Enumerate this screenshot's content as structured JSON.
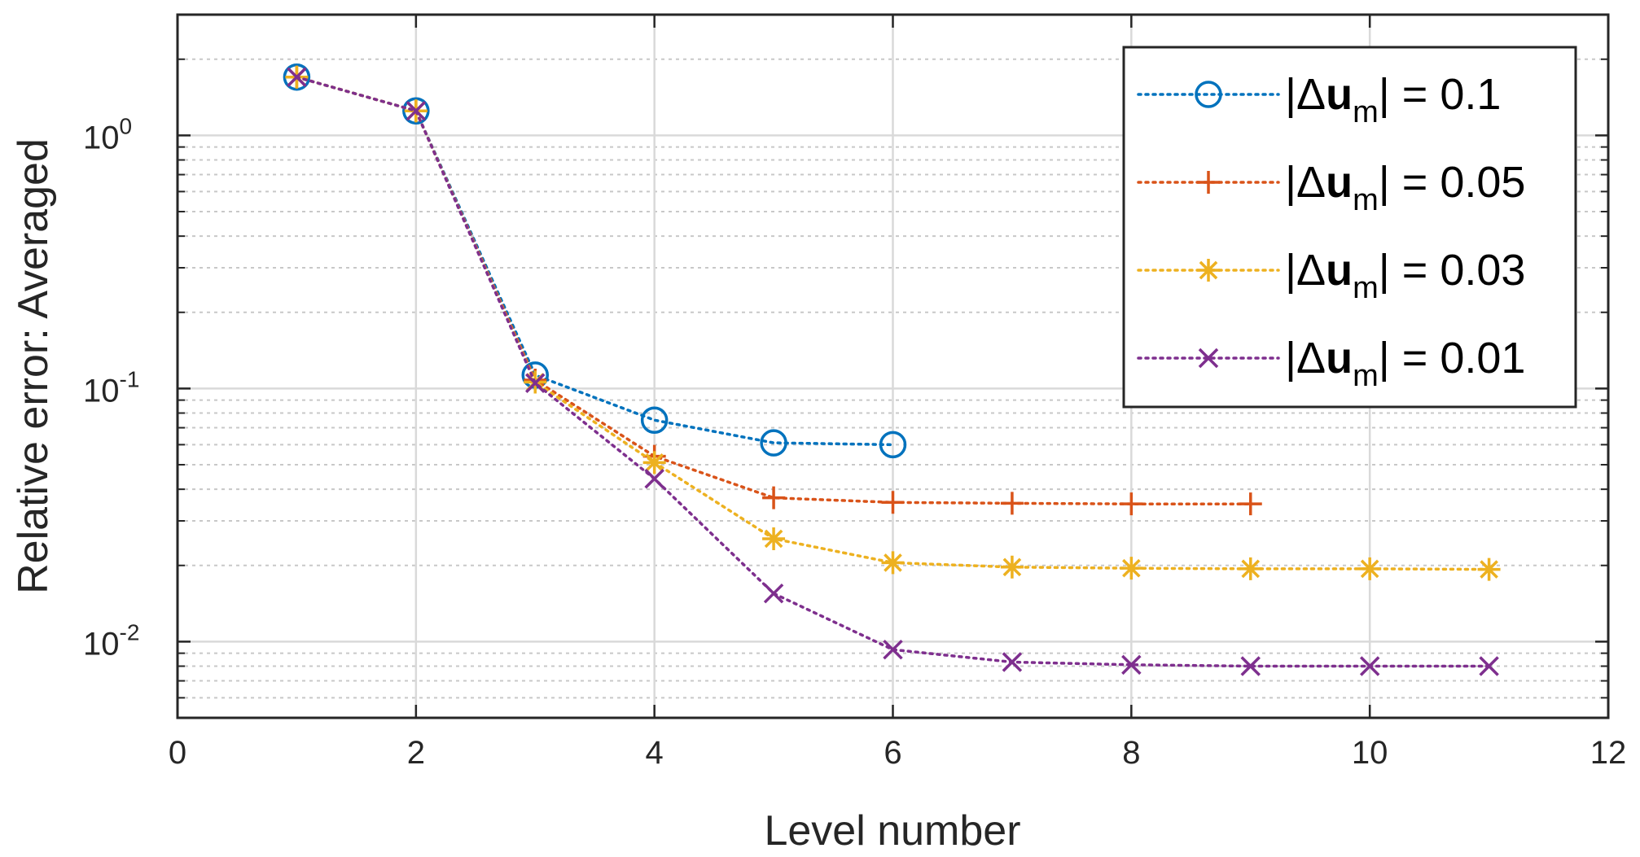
{
  "chart_data": {
    "type": "line",
    "yscale": "log",
    "xlabel": "Level number",
    "ylabel": "Relative error: Averaged",
    "xlim": [
      0,
      12
    ],
    "ylim": [
      0.005,
      3
    ],
    "xticks": [
      0,
      2,
      4,
      6,
      8,
      10,
      12
    ],
    "yticks": [
      {
        "value": 0.01,
        "base": "10",
        "exp": "-2"
      },
      {
        "value": 0.1,
        "base": "10",
        "exp": "-1"
      },
      {
        "value": 1,
        "base": "10",
        "exp": "0"
      }
    ],
    "grid": true,
    "minor_grid": true,
    "legend_position": "top-right",
    "series": [
      {
        "name": "|Δu_m| = 0.1",
        "legend": {
          "pre": "|Δ",
          "bold": "u",
          "sub": "m",
          "post": "| = 0.1"
        },
        "marker": "circle",
        "color": "#0072BD",
        "x": [
          1,
          2,
          3,
          4,
          5,
          6
        ],
        "y": [
          1.7,
          1.25,
          0.113,
          0.075,
          0.061,
          0.06
        ]
      },
      {
        "name": "|Δu_m| = 0.05",
        "legend": {
          "pre": "|Δ",
          "bold": "u",
          "sub": "m",
          "post": "| = 0.05"
        },
        "marker": "plus",
        "color": "#D95319",
        "x": [
          1,
          2,
          3,
          4,
          5,
          6,
          7,
          8,
          9
        ],
        "y": [
          1.7,
          1.25,
          0.108,
          0.054,
          0.037,
          0.0355,
          0.0352,
          0.035,
          0.035
        ]
      },
      {
        "name": "|Δu_m| = 0.03",
        "legend": {
          "pre": "|Δ",
          "bold": "u",
          "sub": "m",
          "post": "| = 0.03"
        },
        "marker": "asterisk",
        "color": "#EDB120",
        "x": [
          1,
          2,
          3,
          4,
          5,
          6,
          7,
          8,
          9,
          10,
          11
        ],
        "y": [
          1.7,
          1.25,
          0.106,
          0.051,
          0.0255,
          0.0205,
          0.0197,
          0.0195,
          0.0194,
          0.0194,
          0.0193
        ]
      },
      {
        "name": "|Δu_m| = 0.01",
        "legend": {
          "pre": "|Δ",
          "bold": "u",
          "sub": "m",
          "post": "| = 0.01"
        },
        "marker": "x",
        "color": "#7E2F8E",
        "x": [
          1,
          2,
          3,
          4,
          5,
          6,
          7,
          8,
          9,
          10,
          11
        ],
        "y": [
          1.7,
          1.25,
          0.105,
          0.044,
          0.0155,
          0.0093,
          0.0083,
          0.0081,
          0.008,
          0.008,
          0.008
        ]
      }
    ]
  }
}
